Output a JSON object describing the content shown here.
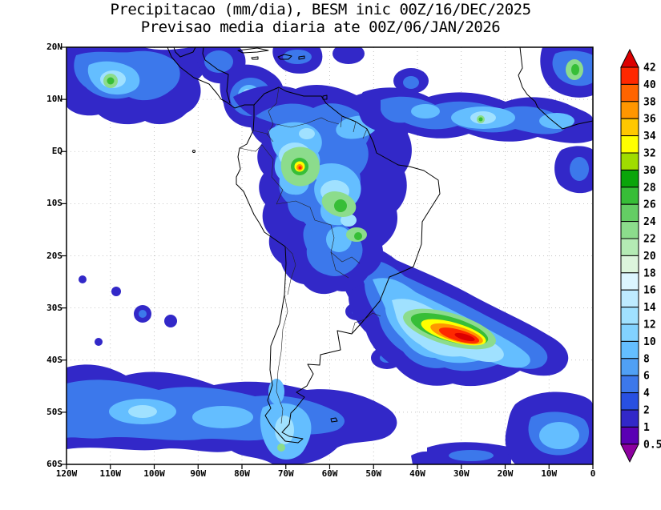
{
  "title": {
    "line1": "Precipitacao (mm/dia), BESM inic 00Z/16/DEC/2025",
    "line2": "Previsao media diaria ate 00Z/06/JAN/2026"
  },
  "map": {
    "lat_ticks": [
      "20N",
      "10N",
      "EQ",
      "10S",
      "20S",
      "30S",
      "40S",
      "50S",
      "60S"
    ],
    "lon_ticks": [
      "120W",
      "110W",
      "100W",
      "90W",
      "80W",
      "70W",
      "60W",
      "50W",
      "40W",
      "30W",
      "20W",
      "10W",
      "0"
    ]
  },
  "colorbar": {
    "units": "mm/dia",
    "levels_top_to_bottom": [
      "42",
      "40",
      "38",
      "36",
      "34",
      "32",
      "30",
      "28",
      "26",
      "24",
      "22",
      "20",
      "18",
      "16",
      "14",
      "12",
      "10",
      "8",
      "6",
      "4",
      "2",
      "1",
      "0.5"
    ],
    "above_color": "#DC0000",
    "cells_top_to_bottom": [
      "#FF2800",
      "#FF6400",
      "#FF9600",
      "#FFC800",
      "#FFFF00",
      "#A0DC00",
      "#0AA50A",
      "#37BE37",
      "#64CD64",
      "#8CDC8C",
      "#B4EBB4",
      "#DCF5DC",
      "#DCF5FF",
      "#BEEBFF",
      "#A0E1FF",
      "#82D2FF",
      "#64BEFF",
      "#50A0F5",
      "#3C78EB",
      "#2850E1",
      "#3228C8",
      "#5A00B4"
    ],
    "below_color": "#8C00A0"
  }
}
